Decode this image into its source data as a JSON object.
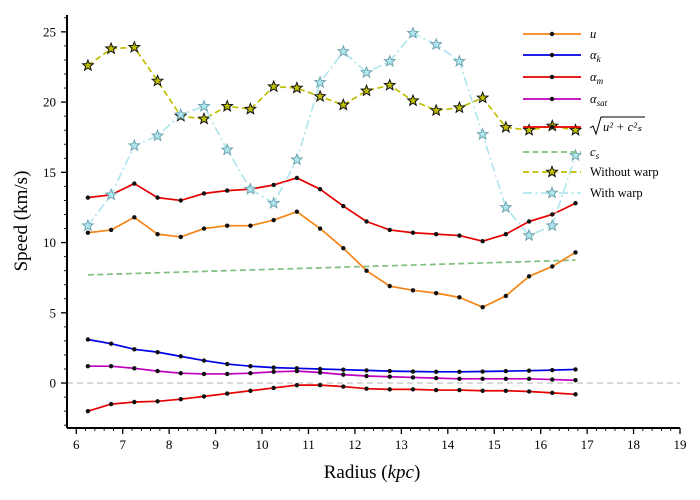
{
  "chart_data": {
    "type": "line",
    "title": "",
    "xlabel_prefix": "Radius (",
    "xlabel_unit": "kpc",
    "xlabel_suffix": ")",
    "ylabel": "Speed (km/s)",
    "xlim": [
      5.8,
      19.0
    ],
    "ylim": [
      -3.2,
      26.2
    ],
    "xticks": [
      6,
      7,
      8,
      9,
      10,
      11,
      12,
      13,
      14,
      15,
      16,
      17,
      18,
      19
    ],
    "yticks": [
      0,
      5,
      10,
      15,
      20,
      25
    ],
    "zero_line": true,
    "legend_position": "top-right",
    "x": [
      6.25,
      6.75,
      7.25,
      7.75,
      8.25,
      8.75,
      9.25,
      9.75,
      10.25,
      10.75,
      11.25,
      11.75,
      12.25,
      12.75,
      13.25,
      13.75,
      14.25,
      14.75,
      15.25,
      15.75,
      16.25,
      16.75
    ],
    "series": [
      {
        "key": "u",
        "label_main": "u",
        "label_sub": "",
        "color": "#f58518",
        "style": "solid-dot",
        "values": [
          10.7,
          10.9,
          11.8,
          10.6,
          10.4,
          11.0,
          11.2,
          11.2,
          11.6,
          12.2,
          11.0,
          9.6,
          8.0,
          6.9,
          6.6,
          6.4,
          6.1,
          5.4,
          6.2,
          7.6,
          8.3,
          9.3
        ]
      },
      {
        "key": "alpha_k",
        "label_main": "α",
        "label_sub": "k",
        "color": "#0000e6",
        "style": "solid-dot",
        "values": [
          3.1,
          2.8,
          2.4,
          2.2,
          1.9,
          1.6,
          1.35,
          1.2,
          1.1,
          1.05,
          1.0,
          0.95,
          0.9,
          0.85,
          0.82,
          0.8,
          0.8,
          0.82,
          0.85,
          0.88,
          0.92,
          0.97
        ]
      },
      {
        "key": "alpha_m",
        "label_main": "α",
        "label_sub": "m",
        "color": "#e60000",
        "style": "solid-dot",
        "values": [
          -2.0,
          -1.5,
          -1.35,
          -1.3,
          -1.15,
          -0.95,
          -0.75,
          -0.55,
          -0.35,
          -0.15,
          -0.15,
          -0.25,
          -0.4,
          -0.45,
          -0.45,
          -0.5,
          -0.5,
          -0.55,
          -0.55,
          -0.6,
          -0.7,
          -0.8
        ]
      },
      {
        "key": "alpha_sat",
        "label_main": "α",
        "label_sub": "sat",
        "color": "#bf00bf",
        "style": "solid-dot",
        "values": [
          1.2,
          1.2,
          1.05,
          0.85,
          0.7,
          0.65,
          0.65,
          0.7,
          0.8,
          0.85,
          0.75,
          0.6,
          0.5,
          0.45,
          0.4,
          0.35,
          0.3,
          0.3,
          0.3,
          0.3,
          0.25,
          0.2
        ]
      },
      {
        "key": "sqrt",
        "label_main": "√",
        "label_sub": "u² + c²ₛ",
        "color": "#e60000",
        "style": "solid-dot",
        "values": [
          13.2,
          13.4,
          14.2,
          13.2,
          13.0,
          13.5,
          13.7,
          13.8,
          14.1,
          14.6,
          13.8,
          12.6,
          11.5,
          10.9,
          10.7,
          10.6,
          10.5,
          10.1,
          10.6,
          11.5,
          12.0,
          12.8
        ]
      },
      {
        "key": "cs",
        "label_main": "c",
        "label_sub": "s",
        "color": "#7fbf7f",
        "style": "dashed",
        "values": [
          7.7,
          7.75,
          7.8,
          7.85,
          7.9,
          7.95,
          8.0,
          8.05,
          8.1,
          8.15,
          8.2,
          8.25,
          8.3,
          8.35,
          8.4,
          8.45,
          8.5,
          8.55,
          8.6,
          8.65,
          8.7,
          8.75
        ]
      },
      {
        "key": "without_warp",
        "label_main": "Without warp",
        "label_sub": "",
        "color": "#bfbf00",
        "style": "dashed-star",
        "values": [
          22.6,
          23.8,
          23.9,
          21.5,
          19.0,
          18.8,
          19.7,
          19.5,
          21.1,
          21.0,
          20.4,
          19.8,
          20.8,
          21.2,
          20.1,
          19.4,
          19.6,
          20.3,
          18.2,
          18.0,
          18.3,
          18.0
        ]
      },
      {
        "key": "with_warp",
        "label_main": "With warp",
        "label_sub": "",
        "color": "#b0e6ee",
        "style": "dashdot-star",
        "values": [
          11.2,
          13.4,
          16.9,
          17.6,
          19.1,
          19.7,
          16.6,
          13.8,
          12.8,
          15.9,
          21.4,
          23.6,
          22.1,
          22.9,
          24.9,
          24.1,
          22.9,
          17.7,
          12.5,
          10.5,
          11.2,
          16.2
        ]
      }
    ]
  }
}
